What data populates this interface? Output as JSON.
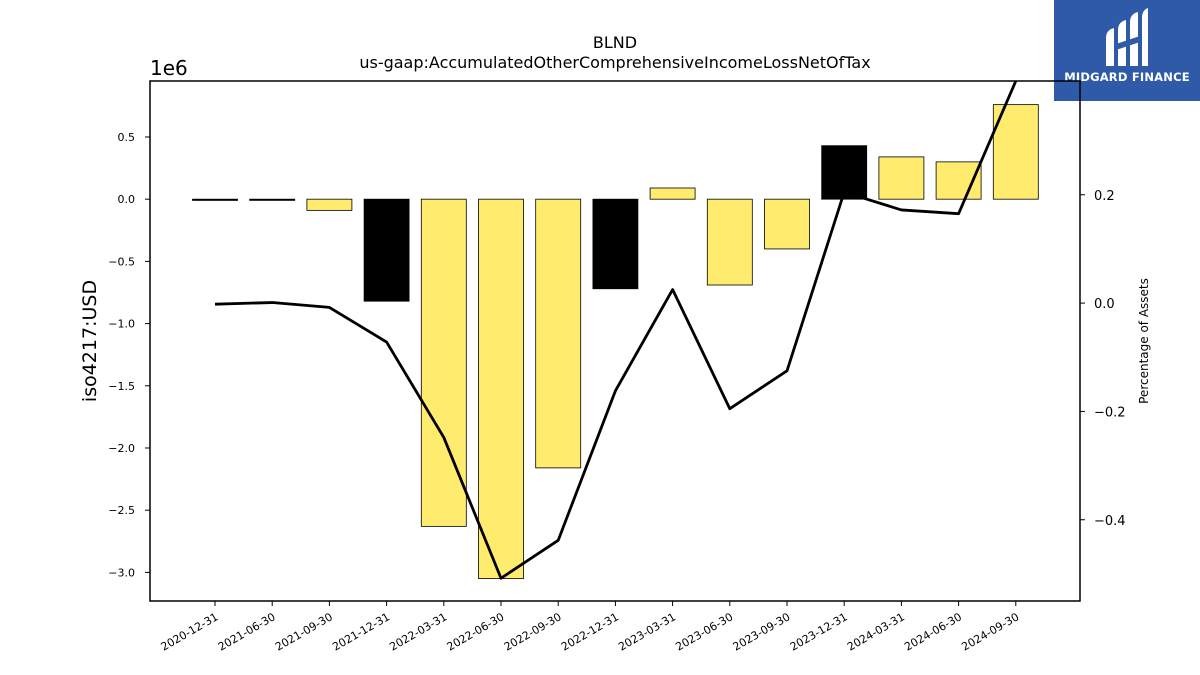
{
  "logo": {
    "text": "MIDGARD FINANCE",
    "icon": "midgard-m-logo-icon",
    "background": "#2e5aa8"
  },
  "chart_data": {
    "type": "bar",
    "title": "BLND",
    "subtitle": "us-gaap:AccumulatedOtherComprehensiveIncomeLossNetOfTax",
    "ylabel": "iso4217:USD",
    "y2label": "Percentage of Assets",
    "y_offset_label": "1e6",
    "ylim": [
      -3.23,
      0.95
    ],
    "y2lim": [
      -0.55,
      0.41
    ],
    "yticks": [
      0.5,
      0.0,
      -0.5,
      -1.0,
      -1.5,
      -2.0,
      -2.5,
      -3.0
    ],
    "ytick_labels": [
      "0.5",
      "0.0",
      "−0.5",
      "−1.0",
      "−1.5",
      "−2.0",
      "−2.5",
      "−3.0"
    ],
    "y2ticks": [
      0.2,
      0.0,
      -0.2,
      -0.4
    ],
    "y2tick_labels": [
      "0.2",
      "0.0",
      "−0.2",
      "−0.4"
    ],
    "categories": [
      "2020-12-31",
      "2021-06-30",
      "2021-09-30",
      "2021-12-31",
      "2022-03-31",
      "2022-06-30",
      "2022-09-30",
      "2022-12-31",
      "2023-03-31",
      "2023-06-30",
      "2023-09-30",
      "2023-12-31",
      "2024-03-31",
      "2024-06-30",
      "2024-09-30"
    ],
    "series": [
      {
        "type": "bar",
        "values": [
          -0.01,
          0.0,
          -0.09,
          -0.82,
          -2.63,
          -3.05,
          -2.16,
          -0.72,
          0.09,
          -0.69,
          -0.4,
          0.43,
          0.34,
          0.3,
          0.76
        ],
        "bar_colors": [
          "#000000",
          "#000000",
          "#ffec6e",
          "#000000",
          "#ffec6e",
          "#ffec6e",
          "#ffec6e",
          "#000000",
          "#ffec6e",
          "#ffec6e",
          "#ffec6e",
          "#000000",
          "#ffec6e",
          "#ffec6e",
          "#ffec6e"
        ]
      },
      {
        "type": "line",
        "axis": "right",
        "color": "#000000",
        "values": [
          -0.002,
          0.001,
          -0.008,
          -0.072,
          -0.248,
          -0.508,
          -0.438,
          -0.162,
          0.025,
          -0.195,
          -0.125,
          0.205,
          0.172,
          0.165,
          0.41
        ]
      }
    ],
    "grid": false,
    "legend": "none"
  }
}
